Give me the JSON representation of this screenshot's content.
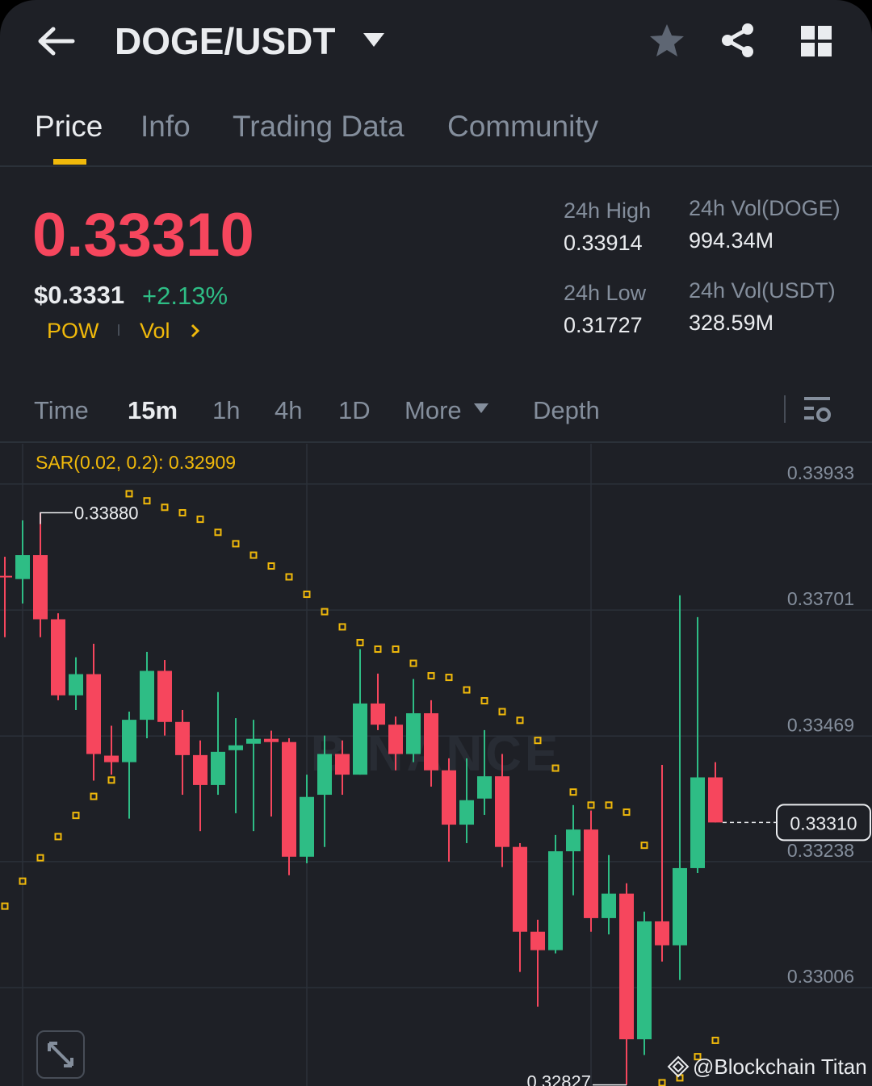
{
  "header": {
    "title": "DOGE/USDT"
  },
  "tabs": [
    "Price",
    "Info",
    "Trading Data",
    "Community"
  ],
  "price": {
    "last": "0.33310",
    "usd": "$0.3331",
    "change": "+2.13%",
    "tags": [
      "POW",
      "Vol"
    ]
  },
  "stats": [
    {
      "label": "24h High",
      "value": "0.33914"
    },
    {
      "label": "24h Vol(DOGE)",
      "value": "994.34M"
    },
    {
      "label": "24h Low",
      "value": "0.31727"
    },
    {
      "label": "24h Vol(USDT)",
      "value": "328.59M"
    }
  ],
  "intervals": [
    "Time",
    "15m",
    "1h",
    "4h",
    "1D",
    "More",
    "Depth"
  ],
  "chart_data": {
    "type": "candlestick",
    "indicator": "SAR(0.02, 0.2): 0.32909",
    "watermark": "BINANCE",
    "up_color": "#2ebd85",
    "down_color": "#f6465d",
    "sar_color": "#f0b90b",
    "ylim": [
      0.32825,
      0.34007
    ],
    "yticks": [
      0.33933,
      0.33701,
      0.33469,
      0.33238,
      0.33006
    ],
    "open": [
      0.33764,
      0.33758,
      0.33802,
      0.33684,
      0.33544,
      0.33583,
      0.33433,
      0.33421,
      0.33499,
      0.33589,
      0.33495,
      0.33434,
      0.33379,
      0.33443,
      0.33455,
      0.33464,
      0.33458,
      0.33247,
      0.33361,
      0.33436,
      0.33398,
      0.33529,
      0.3349,
      0.33436,
      0.33511,
      0.33406,
      0.33306,
      0.33354,
      0.33395,
      0.33265,
      0.33109,
      0.33075,
      0.33257,
      0.33297,
      0.33134,
      0.33179,
      0.32911,
      0.33128,
      0.33084,
      0.33226,
      0.33393
    ],
    "high": [
      0.33799,
      0.33866,
      0.3388,
      0.33695,
      0.33614,
      0.33639,
      0.33488,
      0.33514,
      0.33624,
      0.33609,
      0.33517,
      0.33461,
      0.3355,
      0.33502,
      0.33499,
      0.33479,
      0.33465,
      0.33398,
      0.3347,
      0.33461,
      0.33629,
      0.33584,
      0.33505,
      0.33574,
      0.33535,
      0.33428,
      0.33428,
      0.3348,
      0.33436,
      0.33272,
      0.33131,
      0.33287,
      0.33342,
      0.33332,
      0.3325,
      0.33198,
      0.33146,
      0.33416,
      0.33728,
      0.33688,
      0.33421
    ],
    "low": [
      0.33651,
      0.33713,
      0.33651,
      0.33535,
      0.33517,
      0.33387,
      0.33398,
      0.33317,
      0.33465,
      0.3347,
      0.33361,
      0.33294,
      0.33361,
      0.33327,
      0.33294,
      0.33321,
      0.33213,
      0.33235,
      0.33265,
      0.33361,
      0.33398,
      0.3348,
      0.33406,
      0.33421,
      0.33376,
      0.33238,
      0.33272,
      0.33324,
      0.33228,
      0.33035,
      0.32971,
      0.33069,
      0.33176,
      0.33109,
      0.33104,
      0.32827,
      0.32882,
      0.33054,
      0.3302,
      0.33217,
      0.3331
    ],
    "close": [
      0.33761,
      0.33802,
      0.33684,
      0.33544,
      0.33583,
      0.33436,
      0.33421,
      0.33499,
      0.33589,
      0.33495,
      0.33434,
      0.33379,
      0.3344,
      0.33452,
      0.33464,
      0.33458,
      0.33247,
      0.33357,
      0.33436,
      0.33398,
      0.33529,
      0.3349,
      0.33436,
      0.33511,
      0.33406,
      0.33306,
      0.33351,
      0.33395,
      0.33265,
      0.33109,
      0.33075,
      0.33257,
      0.33297,
      0.33134,
      0.33179,
      0.32911,
      0.33128,
      0.33084,
      0.33226,
      0.33393,
      0.3331
    ],
    "sar": [
      0.33156,
      0.33202,
      0.33245,
      0.33284,
      0.33323,
      0.33358,
      0.33388,
      0.33915,
      0.33902,
      0.3389,
      0.3388,
      0.33868,
      0.33844,
      0.33823,
      0.33802,
      0.33782,
      0.33762,
      0.3373,
      0.33698,
      0.3367,
      0.33641,
      0.33629,
      0.33629,
      0.33603,
      0.3358,
      0.33577,
      0.33554,
      0.33534,
      0.33514,
      0.33498,
      0.33461,
      0.3341,
      0.33366,
      0.33342,
      0.33342,
      0.33329,
      0.33268,
      0.32831,
      0.3284,
      0.32879,
      0.32909
    ],
    "max_label": {
      "value": 0.3388,
      "label": "0.33880"
    },
    "min_label": 0.32827,
    "last": {
      "value": 0.3331,
      "label": "0.33310"
    }
  },
  "credit": "@Blockchain Titan"
}
